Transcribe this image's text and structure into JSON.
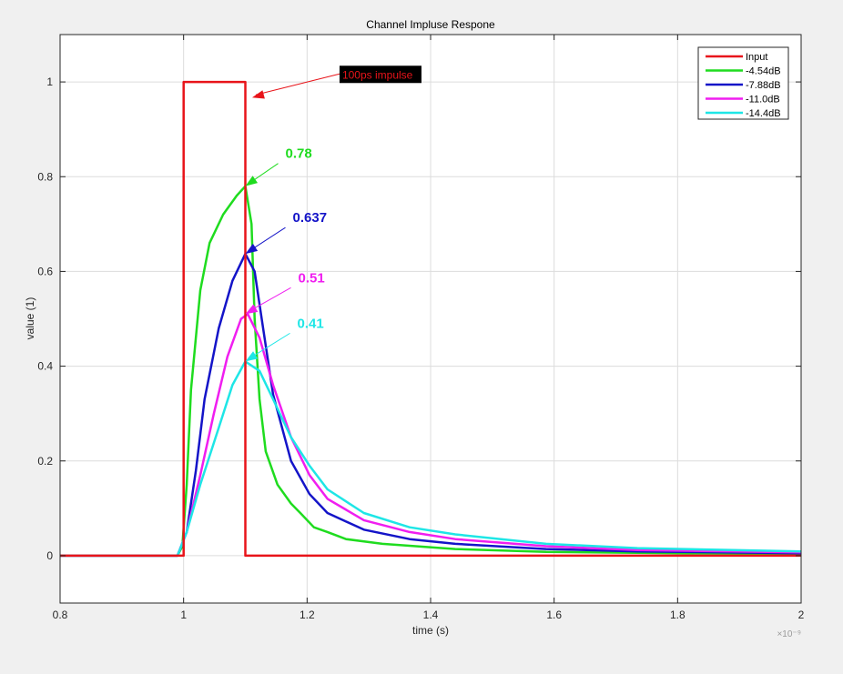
{
  "chart_data": {
    "type": "line",
    "title": "Channel Impluse Respone",
    "xlabel": "time (s)",
    "ylabel": "value (1)",
    "x_exponent": "×10⁻⁹",
    "xlim": [
      0.8,
      2.0
    ],
    "ylim": [
      -0.1,
      1.1
    ],
    "xticks": [
      "0.8",
      "1",
      "1.2",
      "1.4",
      "1.6",
      "1.8",
      "2"
    ],
    "xtick_values": [
      0.8,
      1.0,
      1.2,
      1.4,
      1.6,
      1.8,
      2.0
    ],
    "yticks": [
      "0",
      "0.2",
      "0.4",
      "0.6",
      "0.8",
      "1"
    ],
    "ytick_values": [
      0,
      0.2,
      0.4,
      0.6,
      0.8,
      1.0
    ],
    "grid": true,
    "legend_position": "top-right",
    "series": [
      {
        "name": "Input",
        "color": "#e8141a",
        "x": [
          0.8,
          1.0,
          1.0,
          1.1,
          1.1,
          2.0
        ],
        "y": [
          0,
          0,
          1,
          1,
          0,
          0
        ]
      },
      {
        "name": "-4.54dB",
        "color": "#1fdc1f",
        "x": [
          0.8,
          0.99,
          0.998,
          1.005,
          1.012,
          1.027,
          1.042,
          1.064,
          1.086,
          1.1,
          1.11,
          1.115,
          1.123,
          1.133,
          1.152,
          1.174,
          1.189,
          1.211,
          1.233,
          1.263,
          1.322,
          1.44,
          1.587,
          2.0
        ],
        "y": [
          0,
          0,
          0.02,
          0.15,
          0.35,
          0.56,
          0.66,
          0.72,
          0.76,
          0.78,
          0.7,
          0.5,
          0.33,
          0.22,
          0.15,
          0.11,
          0.09,
          0.06,
          0.05,
          0.035,
          0.025,
          0.014,
          0.008,
          0.003
        ]
      },
      {
        "name": "-7.88dB",
        "color": "#1414c8",
        "x": [
          0.8,
          0.99,
          1.005,
          1.02,
          1.034,
          1.057,
          1.079,
          1.1,
          1.115,
          1.13,
          1.145,
          1.174,
          1.204,
          1.233,
          1.292,
          1.366,
          1.44,
          1.587,
          1.735,
          2.0
        ],
        "y": [
          0,
          0,
          0.05,
          0.18,
          0.33,
          0.48,
          0.58,
          0.637,
          0.6,
          0.47,
          0.34,
          0.2,
          0.13,
          0.09,
          0.055,
          0.035,
          0.025,
          0.014,
          0.009,
          0.005
        ]
      },
      {
        "name": "-11.0dB",
        "color": "#f01ef0",
        "x": [
          0.8,
          0.99,
          1.005,
          1.027,
          1.049,
          1.071,
          1.093,
          1.104,
          1.123,
          1.145,
          1.174,
          1.204,
          1.233,
          1.292,
          1.366,
          1.44,
          1.587,
          1.735,
          2.0
        ],
        "y": [
          0,
          0,
          0.05,
          0.17,
          0.3,
          0.42,
          0.5,
          0.51,
          0.46,
          0.36,
          0.25,
          0.17,
          0.12,
          0.075,
          0.05,
          0.035,
          0.02,
          0.012,
          0.007
        ]
      },
      {
        "name": "-14.4dB",
        "color": "#1ee6e6",
        "x": [
          0.8,
          0.99,
          1.005,
          1.027,
          1.057,
          1.079,
          1.1,
          1.123,
          1.145,
          1.174,
          1.204,
          1.233,
          1.292,
          1.366,
          1.44,
          1.587,
          1.735,
          2.0
        ],
        "y": [
          0,
          0,
          0.05,
          0.15,
          0.27,
          0.36,
          0.41,
          0.39,
          0.33,
          0.25,
          0.19,
          0.14,
          0.09,
          0.06,
          0.045,
          0.025,
          0.016,
          0.009
        ]
      }
    ],
    "annotations": [
      {
        "text": "100ps impulse",
        "color": "#e8141a",
        "boxed": true,
        "x": 1.111,
        "y": 0.967
      },
      {
        "text": "0.78",
        "color": "#1fdc1f",
        "x": 1.1,
        "y": 0.78
      },
      {
        "text": "0.637",
        "color": "#1414c8",
        "x": 1.1,
        "y": 0.637
      },
      {
        "text": "0.51",
        "color": "#f01ef0",
        "x": 1.1,
        "y": 0.51
      },
      {
        "text": "0.41",
        "color": "#1ee6e6",
        "x": 1.1,
        "y": 0.41
      }
    ]
  }
}
